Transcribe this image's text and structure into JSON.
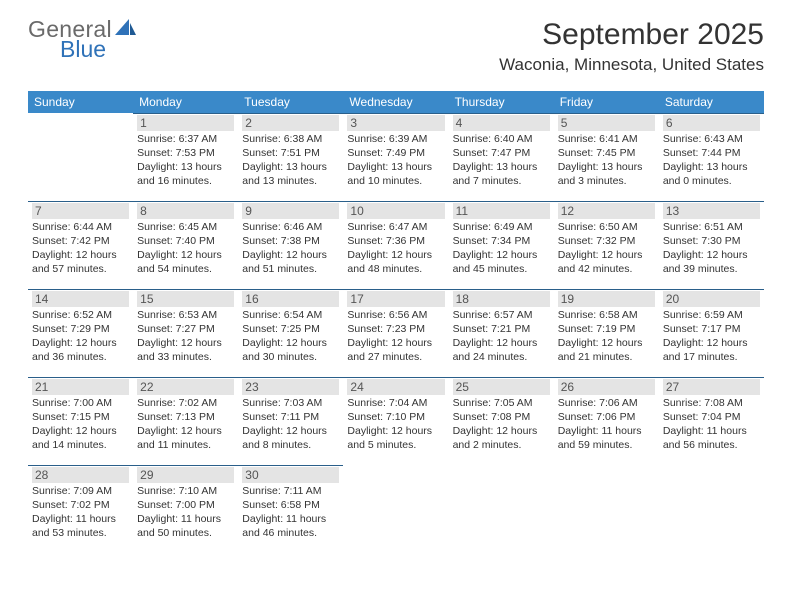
{
  "logo": {
    "general": "General",
    "blue": "Blue"
  },
  "title": "September 2025",
  "location": "Waconia, Minnesota, United States",
  "colors": {
    "header_bg": "#3a89c9",
    "header_text": "#ffffff",
    "cell_border": "#2a5f8a",
    "daynum_bg": "#e4e4e4",
    "body_text": "#333333",
    "logo_general": "#6a6a6a",
    "logo_blue": "#2f72b8",
    "background": "#ffffff"
  },
  "typography": {
    "title_fontsize": 30,
    "location_fontsize": 17,
    "th_fontsize": 12,
    "daynum_fontsize": 12,
    "cell_fontsize": 10.5,
    "logo_fontsize": 23
  },
  "days_of_week": [
    "Sunday",
    "Monday",
    "Tuesday",
    "Wednesday",
    "Thursday",
    "Friday",
    "Saturday"
  ],
  "layout": {
    "first_weekday_index": 1,
    "num_days": 30
  },
  "days": {
    "1": {
      "sunrise": "6:37 AM",
      "sunset": "7:53 PM",
      "daylight": "13 hours and 16 minutes."
    },
    "2": {
      "sunrise": "6:38 AM",
      "sunset": "7:51 PM",
      "daylight": "13 hours and 13 minutes."
    },
    "3": {
      "sunrise": "6:39 AM",
      "sunset": "7:49 PM",
      "daylight": "13 hours and 10 minutes."
    },
    "4": {
      "sunrise": "6:40 AM",
      "sunset": "7:47 PM",
      "daylight": "13 hours and 7 minutes."
    },
    "5": {
      "sunrise": "6:41 AM",
      "sunset": "7:45 PM",
      "daylight": "13 hours and 3 minutes."
    },
    "6": {
      "sunrise": "6:43 AM",
      "sunset": "7:44 PM",
      "daylight": "13 hours and 0 minutes."
    },
    "7": {
      "sunrise": "6:44 AM",
      "sunset": "7:42 PM",
      "daylight": "12 hours and 57 minutes."
    },
    "8": {
      "sunrise": "6:45 AM",
      "sunset": "7:40 PM",
      "daylight": "12 hours and 54 minutes."
    },
    "9": {
      "sunrise": "6:46 AM",
      "sunset": "7:38 PM",
      "daylight": "12 hours and 51 minutes."
    },
    "10": {
      "sunrise": "6:47 AM",
      "sunset": "7:36 PM",
      "daylight": "12 hours and 48 minutes."
    },
    "11": {
      "sunrise": "6:49 AM",
      "sunset": "7:34 PM",
      "daylight": "12 hours and 45 minutes."
    },
    "12": {
      "sunrise": "6:50 AM",
      "sunset": "7:32 PM",
      "daylight": "12 hours and 42 minutes."
    },
    "13": {
      "sunrise": "6:51 AM",
      "sunset": "7:30 PM",
      "daylight": "12 hours and 39 minutes."
    },
    "14": {
      "sunrise": "6:52 AM",
      "sunset": "7:29 PM",
      "daylight": "12 hours and 36 minutes."
    },
    "15": {
      "sunrise": "6:53 AM",
      "sunset": "7:27 PM",
      "daylight": "12 hours and 33 minutes."
    },
    "16": {
      "sunrise": "6:54 AM",
      "sunset": "7:25 PM",
      "daylight": "12 hours and 30 minutes."
    },
    "17": {
      "sunrise": "6:56 AM",
      "sunset": "7:23 PM",
      "daylight": "12 hours and 27 minutes."
    },
    "18": {
      "sunrise": "6:57 AM",
      "sunset": "7:21 PM",
      "daylight": "12 hours and 24 minutes."
    },
    "19": {
      "sunrise": "6:58 AM",
      "sunset": "7:19 PM",
      "daylight": "12 hours and 21 minutes."
    },
    "20": {
      "sunrise": "6:59 AM",
      "sunset": "7:17 PM",
      "daylight": "12 hours and 17 minutes."
    },
    "21": {
      "sunrise": "7:00 AM",
      "sunset": "7:15 PM",
      "daylight": "12 hours and 14 minutes."
    },
    "22": {
      "sunrise": "7:02 AM",
      "sunset": "7:13 PM",
      "daylight": "12 hours and 11 minutes."
    },
    "23": {
      "sunrise": "7:03 AM",
      "sunset": "7:11 PM",
      "daylight": "12 hours and 8 minutes."
    },
    "24": {
      "sunrise": "7:04 AM",
      "sunset": "7:10 PM",
      "daylight": "12 hours and 5 minutes."
    },
    "25": {
      "sunrise": "7:05 AM",
      "sunset": "7:08 PM",
      "daylight": "12 hours and 2 minutes."
    },
    "26": {
      "sunrise": "7:06 AM",
      "sunset": "7:06 PM",
      "daylight": "11 hours and 59 minutes."
    },
    "27": {
      "sunrise": "7:08 AM",
      "sunset": "7:04 PM",
      "daylight": "11 hours and 56 minutes."
    },
    "28": {
      "sunrise": "7:09 AM",
      "sunset": "7:02 PM",
      "daylight": "11 hours and 53 minutes."
    },
    "29": {
      "sunrise": "7:10 AM",
      "sunset": "7:00 PM",
      "daylight": "11 hours and 50 minutes."
    },
    "30": {
      "sunrise": "7:11 AM",
      "sunset": "6:58 PM",
      "daylight": "11 hours and 46 minutes."
    }
  },
  "labels": {
    "sunrise": "Sunrise:",
    "sunset": "Sunset:",
    "daylight": "Daylight:"
  }
}
